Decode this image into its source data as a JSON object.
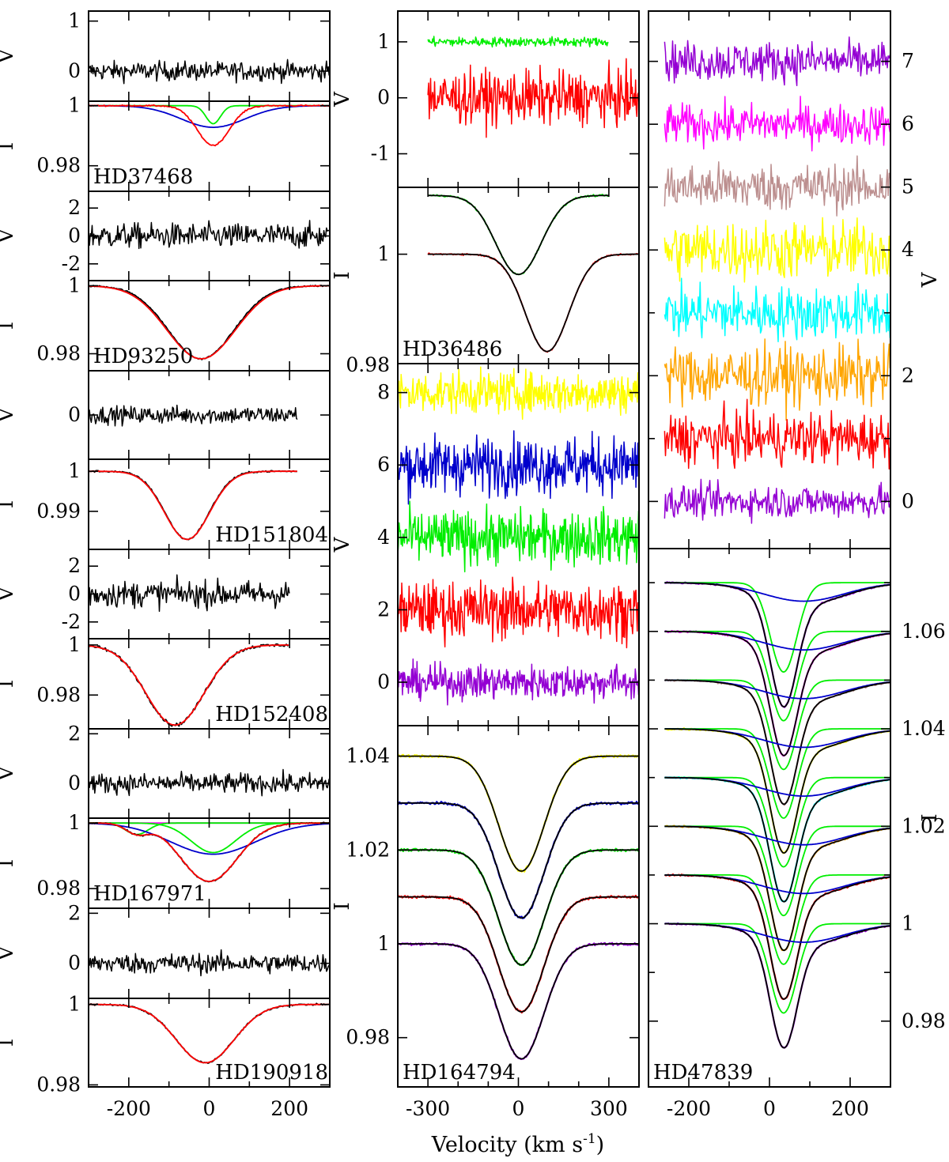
{
  "chart_data": {
    "type": "line",
    "title": "",
    "xlabel": "Velocity (km s",
    "xlabel_sup": "-1",
    "xlabel_close": ")",
    "colors": {
      "black": "#000000",
      "red": "#ff0000",
      "green": "#00ee00",
      "blue": "#0000cc",
      "magenta": "#ff00ff",
      "yellow": "#ffff00",
      "purple": "#9400d3",
      "brown": "#bc8f8f",
      "cyan": "#00ffff",
      "orange": "#ffa500"
    },
    "panels": [
      {
        "id": "hd37468-v",
        "kind": "V",
        "col": 0,
        "ylabel": "V",
        "ylim": [
          -0.6,
          1.2
        ],
        "yticks": [
          {
            "v": 1,
            "t": "1"
          },
          {
            "v": 0,
            "t": "0"
          }
        ],
        "noise": [
          {
            "level": 0,
            "amp": 0.18,
            "color": "black",
            "xr": [
              -300,
              300
            ]
          }
        ]
      },
      {
        "id": "hd37468-i",
        "kind": "I",
        "col": 0,
        "ylabel": "I",
        "star": "HD37468",
        "starPos": "bottom-left",
        "ylim": [
          0.9715,
          1.0015
        ],
        "yticks": [
          {
            "v": 1,
            "t": "1"
          },
          {
            "v": 0.98,
            "t": "0.98"
          }
        ],
        "profiles": [
          {
            "c": "green",
            "depth": 0.006,
            "center": 10,
            "sigma": 18
          },
          {
            "c": "blue",
            "depth": 0.0072,
            "center": 10,
            "sigma": 80
          },
          {
            "c": "red",
            "depth": 0.0132,
            "center": 10,
            "sigma": 40,
            "noise": 0.0002
          }
        ]
      },
      {
        "id": "hd93250-v",
        "kind": "V",
        "col": 0,
        "ylabel": "V",
        "ylim": [
          -3.2,
          3.2
        ],
        "yticks": [
          {
            "v": 2,
            "t": "2"
          },
          {
            "v": 0,
            "t": "0"
          },
          {
            "v": -2,
            "t": "-2"
          }
        ],
        "noise": [
          {
            "level": 0,
            "amp": 0.85,
            "color": "black",
            "xr": [
              -300,
              300
            ]
          }
        ]
      },
      {
        "id": "hd93250-i",
        "kind": "I",
        "col": 0,
        "ylabel": "I",
        "star": "HD93250",
        "starPos": "bottom-left",
        "ylim": [
          0.975,
          1.0015
        ],
        "yticks": [
          {
            "v": 1,
            "t": "1"
          },
          {
            "v": 0.98,
            "t": "0.98"
          }
        ],
        "profiles": [
          {
            "c": "black",
            "depth": 0.0215,
            "center": -20,
            "sigma": 82,
            "noise": 0.0002
          },
          {
            "c": "red",
            "depth": 0.0215,
            "center": -20,
            "sigma": 85
          }
        ]
      },
      {
        "id": "hd151804-v",
        "kind": "V",
        "col": 0,
        "ylabel": "V",
        "ylim": [
          -2,
          2
        ],
        "yticks": [
          {
            "v": 0,
            "t": "0"
          }
        ],
        "noise": [
          {
            "level": 0,
            "amp": 0.38,
            "color": "black",
            "xr": [
              -300,
              220
            ]
          }
        ]
      },
      {
        "id": "hd151804-i",
        "kind": "I",
        "col": 0,
        "ylabel": "I",
        "star": "HD151804",
        "starPos": "bottom-right",
        "ylim": [
          0.9805,
          1.003
        ],
        "yticks": [
          {
            "v": 1,
            "t": "1"
          },
          {
            "v": 0.99,
            "t": "0.99"
          }
        ],
        "profiles": [
          {
            "c": "black",
            "depth": 0.017,
            "center": -55,
            "sigma": 55,
            "xr": [
              -300,
              220
            ],
            "noise": 0.0002
          },
          {
            "c": "red",
            "depth": 0.017,
            "center": -55,
            "sigma": 56,
            "xr": [
              -300,
              220
            ]
          }
        ]
      },
      {
        "id": "hd152408-v",
        "kind": "V",
        "col": 0,
        "ylabel": "V",
        "ylim": [
          -3.2,
          3.2
        ],
        "yticks": [
          {
            "v": 2,
            "t": "2"
          },
          {
            "v": 0,
            "t": "0"
          },
          {
            "v": -2,
            "t": "-2"
          }
        ],
        "noise": [
          {
            "level": 0,
            "amp": 0.9,
            "color": "black",
            "xr": [
              -300,
              200
            ]
          }
        ]
      },
      {
        "id": "hd152408-i",
        "kind": "I",
        "col": 0,
        "ylabel": "I",
        "star": "HD152408",
        "starPos": "bottom-right",
        "ylim": [
          0.9665,
          1.0025
        ],
        "yticks": [
          {
            "v": 1,
            "t": "1"
          },
          {
            "v": 0.98,
            "t": "0.98"
          }
        ],
        "profiles": [
          {
            "c": "black",
            "depth": 0.032,
            "center": -85,
            "sigma": 72,
            "xr": [
              -300,
              200
            ],
            "noise": 0.0006
          },
          {
            "c": "red",
            "depth": 0.032,
            "center": -85,
            "sigma": 72,
            "xr": [
              -300,
              200
            ]
          }
        ]
      },
      {
        "id": "hd167971-v",
        "kind": "V",
        "col": 0,
        "ylabel": "V",
        "ylim": [
          -1.4,
          2.2
        ],
        "yticks": [
          {
            "v": 2,
            "t": "2"
          },
          {
            "v": 0,
            "t": "0"
          }
        ],
        "noise": [
          {
            "level": 0,
            "amp": 0.38,
            "color": "black",
            "xr": [
              -300,
              300
            ]
          }
        ]
      },
      {
        "id": "hd167971-i",
        "kind": "I",
        "col": 0,
        "ylabel": "I",
        "star": "HD167971",
        "starPos": "bottom-left",
        "ylim": [
          0.974,
          1.0015
        ],
        "yticks": [
          {
            "v": 1,
            "t": "1"
          },
          {
            "v": 0.98,
            "t": "0.98"
          }
        ],
        "profiles": [
          {
            "c": "magenta",
            "flat": 1,
            "xr": [
              -300,
              300
            ]
          },
          {
            "c": "green",
            "depth": 0.0035,
            "center": -180,
            "sigma": 28
          },
          {
            "c": "green2",
            "color": "green",
            "depth": 0.009,
            "center": 10,
            "sigma": 55
          },
          {
            "c": "blue",
            "depth": 0.0095,
            "center": 10,
            "sigma": 105
          },
          {
            "c": "black",
            "depth": 0.0178,
            "center": 0,
            "sigma": 70,
            "extra": {
              "depth": 0.003,
              "center": -180,
              "sigma": 28
            },
            "noise": 0.0002
          },
          {
            "c": "red",
            "depth": 0.0178,
            "center": 0,
            "sigma": 70,
            "extra": {
              "depth": 0.003,
              "center": -180,
              "sigma": 28
            }
          }
        ]
      },
      {
        "id": "hd190918-v",
        "kind": "V",
        "col": 0,
        "ylabel": "V",
        "ylim": [
          -1.4,
          2.2
        ],
        "yticks": [
          {
            "v": 2,
            "t": "2"
          },
          {
            "v": 0,
            "t": "0"
          }
        ],
        "noise": [
          {
            "level": 0,
            "amp": 0.38,
            "color": "black",
            "xr": [
              -300,
              300
            ]
          }
        ]
      },
      {
        "id": "hd190918-i",
        "kind": "I",
        "col": 0,
        "ylabel": "I",
        "star": "HD190918",
        "starPos": "bottom-right",
        "ylim": [
          0.9795,
          1.0015
        ],
        "yticks": [
          {
            "v": 1,
            "t": "1"
          },
          {
            "v": 0.98,
            "t": "0.98"
          }
        ],
        "xticks": [
          {
            "v": -200,
            "t": "-200"
          },
          {
            "v": 0,
            "t": "0"
          },
          {
            "v": 200,
            "t": "200"
          }
        ],
        "profiles": [
          {
            "c": "black",
            "depth": 0.0145,
            "center": -10,
            "sigma": 72,
            "noise": 0.0002
          },
          {
            "c": "red",
            "depth": 0.0145,
            "center": -10,
            "sigma": 72
          }
        ]
      },
      {
        "id": "hd36486-v",
        "kind": "V",
        "col": 1,
        "ylabel": "V",
        "ylim": [
          -1.6,
          1.55
        ],
        "yticks": [
          {
            "v": 1,
            "t": "1"
          },
          {
            "v": 0,
            "t": "0"
          },
          {
            "v": -1,
            "t": "-1"
          }
        ],
        "noise": [
          {
            "level": 1,
            "amp": 0.08,
            "color": "green",
            "xr": [
              -300,
              300
            ]
          },
          {
            "level": 0,
            "amp": 0.45,
            "color": "red",
            "xr": [
              -300,
              400
            ]
          }
        ]
      },
      {
        "id": "hd36486-i",
        "kind": "I",
        "col": 1,
        "ylabel": "I",
        "star": "HD36486",
        "starPos": "bottom-left",
        "ylim": [
          0.973,
          1.0165
        ],
        "yticks": [
          {
            "v": 1,
            "t": "1"
          }
        ],
        "profiles": [
          {
            "c": "green",
            "base": 1.0145,
            "depth": 0.0195,
            "center": 0,
            "sigma": 75,
            "xr": [
              -300,
              300
            ],
            "noise": 0.0002
          },
          {
            "c": "black",
            "base": 1.0145,
            "depth": 0.0195,
            "center": 0,
            "sigma": 75,
            "xr": [
              -300,
              300
            ]
          },
          {
            "c": "red",
            "base": 1,
            "depth": 0.024,
            "center": 95,
            "sigma": 72,
            "xr": [
              -300,
              400
            ],
            "noise": 0.0002
          },
          {
            "c": "black",
            "base": 1,
            "depth": 0.024,
            "center": 95,
            "sigma": 72,
            "xr": [
              -300,
              400
            ]
          }
        ]
      },
      {
        "id": "hd164794-v",
        "kind": "V",
        "col": 1,
        "ylabel": "V",
        "topTick": "0.98",
        "ylim": [
          -1.2,
          8.8
        ],
        "yticks": [
          {
            "v": 8,
            "t": "8"
          },
          {
            "v": 6,
            "t": "6"
          },
          {
            "v": 4,
            "t": "4"
          },
          {
            "v": 2,
            "t": "2"
          },
          {
            "v": 0,
            "t": "0"
          }
        ],
        "noise": [
          {
            "level": 8,
            "amp": 0.55,
            "color": "yellow",
            "xr": [
              -400,
              400
            ]
          },
          {
            "level": 6,
            "amp": 0.75,
            "color": "blue",
            "xr": [
              -400,
              400
            ]
          },
          {
            "level": 4,
            "amp": 0.7,
            "color": "green",
            "xr": [
              -400,
              400
            ]
          },
          {
            "level": 2,
            "amp": 0.75,
            "color": "red",
            "xr": [
              -400,
              400
            ]
          },
          {
            "level": 0,
            "amp": 0.45,
            "color": "purple",
            "xr": [
              -400,
              400
            ]
          }
        ]
      },
      {
        "id": "hd164794-i",
        "kind": "I",
        "col": 1,
        "ylabel": "I",
        "star": "HD164794",
        "starPos": "bottom-left",
        "ylim": [
          0.9695,
          1.0465
        ],
        "yticks": [
          {
            "v": 1.04,
            "t": "1.04"
          },
          {
            "v": 1.02,
            "t": "1.02"
          },
          {
            "v": 1,
            "t": "1"
          },
          {
            "v": 0.98,
            "t": "0.98"
          }
        ],
        "xticks": [
          {
            "v": -300,
            "t": "-300"
          },
          {
            "v": 0,
            "t": "0"
          },
          {
            "v": 300,
            "t": "300"
          }
        ],
        "stack": {
          "bases": [
            1.04,
            1.03,
            1.02,
            1.01,
            1.0
          ],
          "colors": [
            "yellow",
            "blue",
            "green",
            "red",
            "purple"
          ],
          "depth": 0.0245,
          "center": 10,
          "sigma": 75
        }
      },
      {
        "id": "hd47839-v",
        "kind": "V",
        "col": 2,
        "ylabel": "V",
        "rightAxis": true,
        "ylim": [
          -0.75,
          7.8
        ],
        "yticks": [
          {
            "v": 7,
            "t": "7"
          },
          {
            "v": 6,
            "t": "6"
          },
          {
            "v": 5,
            "t": "5"
          },
          {
            "v": 4,
            "t": "4"
          },
          {
            "v": 2,
            "t": "2"
          },
          {
            "v": 0,
            "t": "0"
          }
        ],
        "minorTicks": [
          1,
          3
        ],
        "noise": [
          {
            "level": 7,
            "amp": 0.3,
            "color": "purple",
            "xr": [
              -260,
              300
            ]
          },
          {
            "level": 6,
            "amp": 0.3,
            "color": "magenta",
            "xr": [
              -260,
              300
            ]
          },
          {
            "level": 5,
            "amp": 0.35,
            "color": "brown",
            "xr": [
              -260,
              300
            ]
          },
          {
            "level": 4,
            "amp": 0.45,
            "color": "yellow",
            "xr": [
              -260,
              300
            ]
          },
          {
            "level": 3,
            "amp": 0.4,
            "color": "cyan",
            "xr": [
              -260,
              300
            ]
          },
          {
            "level": 2,
            "amp": 0.45,
            "color": "orange",
            "xr": [
              -260,
              300
            ]
          },
          {
            "level": 1,
            "amp": 0.4,
            "color": "red",
            "xr": [
              -260,
              300
            ]
          },
          {
            "level": 0,
            "amp": 0.25,
            "color": "purple",
            "xr": [
              -260,
              300
            ]
          }
        ]
      },
      {
        "id": "hd47839-i",
        "kind": "I",
        "col": 2,
        "ylabel": "I",
        "rightAxis": true,
        "star": "HD47839",
        "starPos": "bottom-left",
        "ylim": [
          0.9665,
          1.077
        ],
        "yticks": [
          {
            "v": 1.06,
            "t": "1.06"
          },
          {
            "v": 1.04,
            "t": "1.04"
          },
          {
            "v": 1.02,
            "t": "1.02"
          },
          {
            "v": 1,
            "t": "1"
          },
          {
            "v": 0.98,
            "t": "0.98"
          }
        ],
        "minorTicks": [
          1.07,
          1.05,
          1.03,
          1.01,
          0.99
        ],
        "xticks": [
          {
            "v": -200,
            "t": "-200"
          },
          {
            "v": 0,
            "t": "0"
          },
          {
            "v": 200,
            "t": "200"
          }
        ],
        "stack47839": {
          "bases": [
            1.07,
            1.06,
            1.05,
            1.04,
            1.03,
            1.02,
            1.01,
            1.0
          ],
          "colors": [
            "purple",
            "magenta",
            "brown",
            "yellow",
            "cyan",
            "orange",
            "red",
            "purple"
          ],
          "center": 35
        }
      }
    ]
  }
}
